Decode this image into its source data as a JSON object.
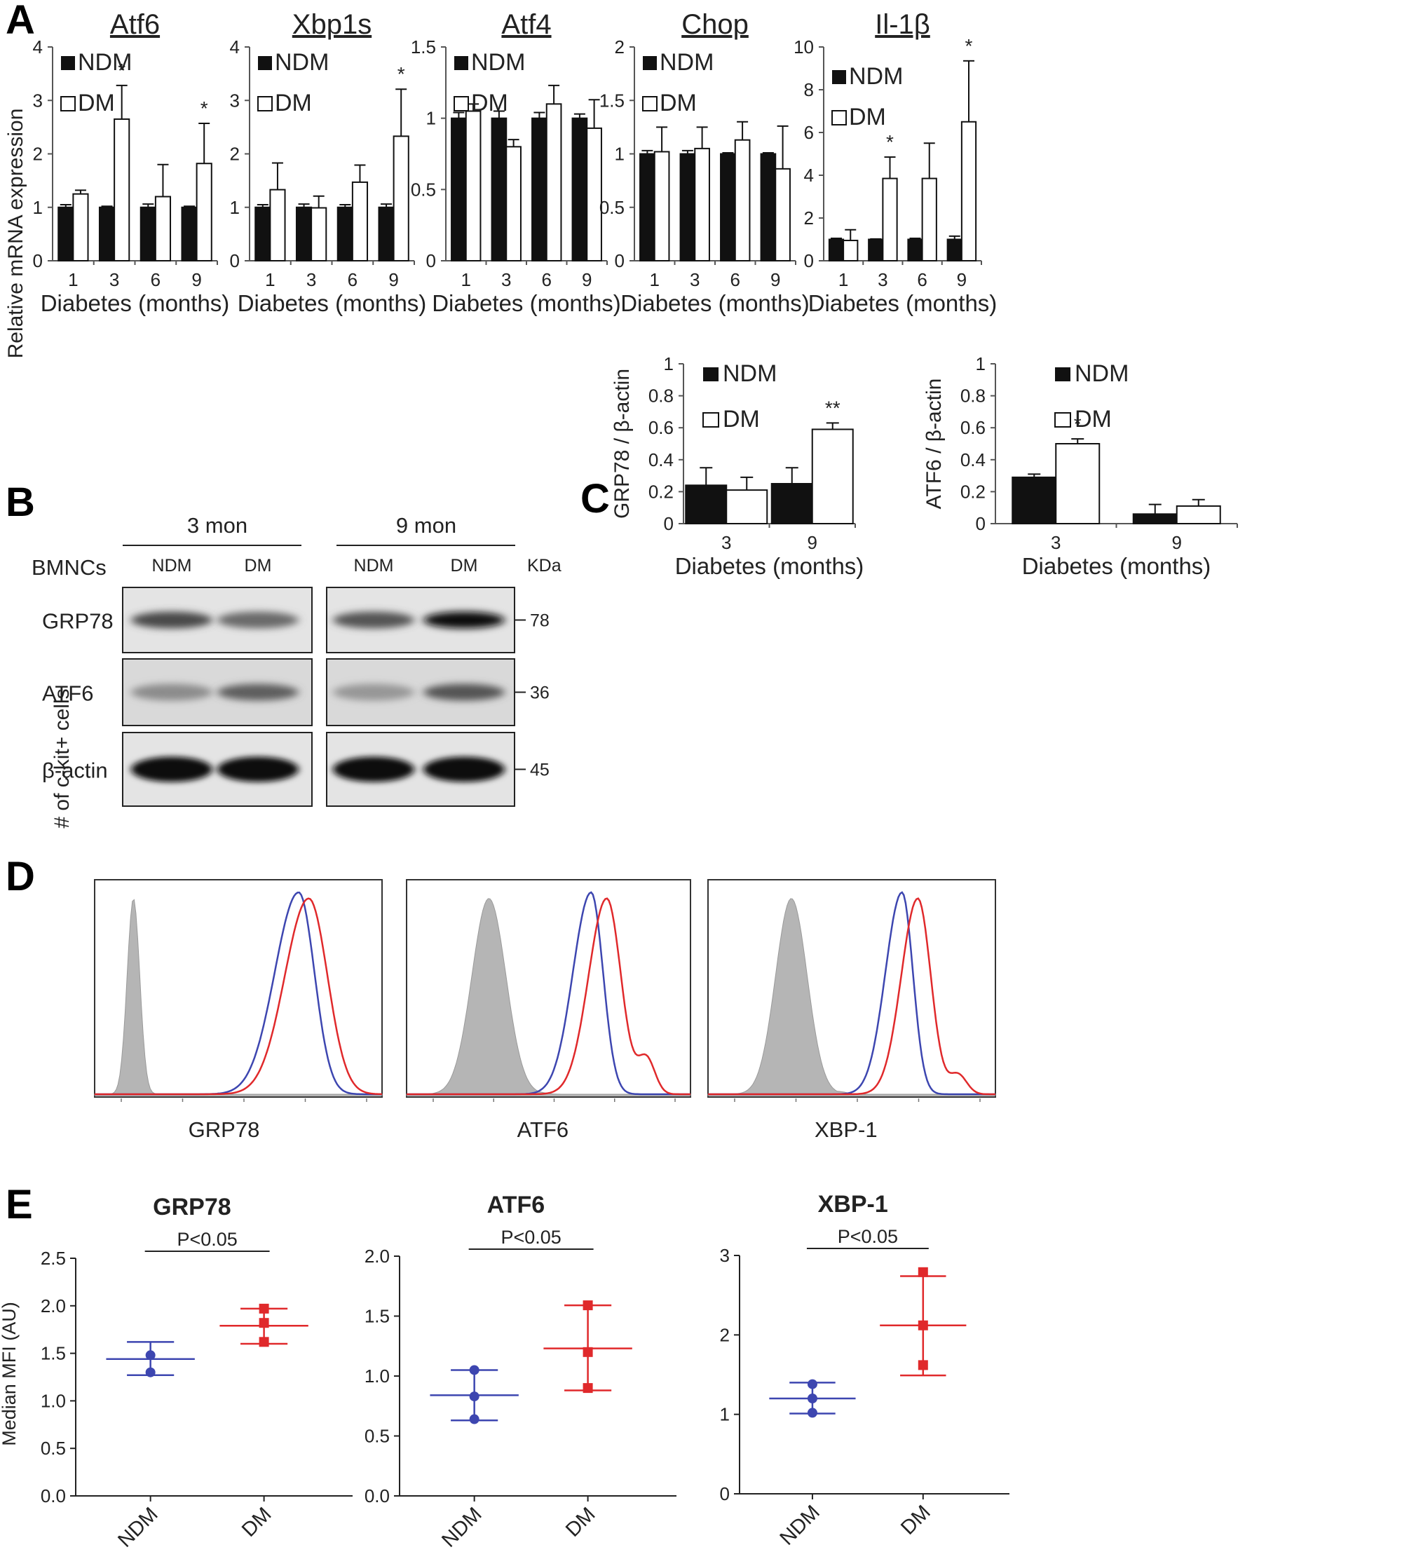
{
  "colors": {
    "ndm_bar": "#111111",
    "dm_bar": "#ffffff",
    "ndm_flow": "#3d46b0",
    "dm_flow": "#e0292b",
    "isotype_fill": "#b5b5b5"
  },
  "panel_labels": {
    "a": "A",
    "b": "B",
    "c": "C",
    "d": "D",
    "e": "E"
  },
  "panel_a": {
    "y_label": "Relative mRNA expression",
    "x_label": "Diabetes  (months)",
    "legend": {
      "ndm": "NDM",
      "dm": "DM"
    },
    "charts": [
      {
        "title": "Atf6",
        "categories": [
          "1",
          "3",
          "6",
          "9"
        ],
        "ylim": [
          0,
          4
        ],
        "yticks": [
          "0",
          "1",
          "2",
          "3",
          "4"
        ],
        "series": [
          {
            "name": "NDM",
            "values": [
              1.0,
              1.0,
              1.0,
              1.0
            ],
            "err": [
              0.05,
              0.02,
              0.06,
              0.02
            ]
          },
          {
            "name": "DM",
            "values": [
              1.25,
              2.65,
              1.2,
              1.82
            ],
            "err": [
              0.07,
              0.63,
              0.6,
              0.75
            ]
          }
        ],
        "stars": [
          "",
          "*",
          "",
          "*"
        ]
      },
      {
        "title": "Xbp1s",
        "categories": [
          "1",
          "3",
          "6",
          "9"
        ],
        "ylim": [
          0,
          4
        ],
        "yticks": [
          "0",
          "1",
          "2",
          "3",
          "4"
        ],
        "series": [
          {
            "name": "NDM",
            "values": [
              1.0,
              1.0,
              1.0,
              1.0
            ],
            "err": [
              0.05,
              0.06,
              0.05,
              0.06
            ]
          },
          {
            "name": "DM",
            "values": [
              1.33,
              0.99,
              1.47,
              2.33
            ],
            "err": [
              0.5,
              0.22,
              0.32,
              0.88
            ]
          }
        ],
        "stars": [
          "",
          "",
          "",
          "*"
        ]
      },
      {
        "title": "Atf4",
        "categories": [
          "1",
          "3",
          "6",
          "9"
        ],
        "ylim": [
          0,
          1.5
        ],
        "yticks": [
          "0",
          "0.5",
          "1",
          "1.5"
        ],
        "series": [
          {
            "name": "NDM",
            "values": [
              1.0,
              1.0,
              1.0,
              1.0
            ],
            "err": [
              0.04,
              0.05,
              0.04,
              0.03
            ]
          },
          {
            "name": "DM",
            "values": [
              1.05,
              0.8,
              1.1,
              0.93
            ],
            "err": [
              0.05,
              0.05,
              0.13,
              0.2
            ]
          }
        ],
        "stars": [
          "",
          "",
          "",
          ""
        ]
      },
      {
        "title": "Chop",
        "categories": [
          "1",
          "3",
          "6",
          "9"
        ],
        "ylim": [
          0,
          2
        ],
        "yticks": [
          "0",
          "0.5",
          "1",
          "1.5",
          "2"
        ],
        "series": [
          {
            "name": "NDM",
            "values": [
              1.0,
              1.0,
              1.0,
              1.0
            ],
            "err": [
              0.03,
              0.03,
              0.01,
              0.01
            ]
          },
          {
            "name": "DM",
            "values": [
              1.02,
              1.05,
              1.13,
              0.86
            ],
            "err": [
              0.23,
              0.2,
              0.17,
              0.4
            ]
          }
        ],
        "stars": [
          "",
          "",
          "",
          ""
        ]
      },
      {
        "title": "Il-1β",
        "categories": [
          "1",
          "3",
          "6",
          "9"
        ],
        "ylim": [
          0,
          10
        ],
        "yticks": [
          "0",
          "2",
          "4",
          "6",
          "8",
          "10"
        ],
        "series": [
          {
            "name": "NDM",
            "values": [
              1.0,
              1.0,
              1.0,
              1.0
            ],
            "err": [
              0.05,
              0.02,
              0.05,
              0.15
            ]
          },
          {
            "name": "DM",
            "values": [
              0.95,
              3.85,
              3.85,
              6.5
            ],
            "err": [
              0.5,
              1.0,
              1.65,
              2.85
            ]
          }
        ],
        "stars": [
          "",
          "*",
          "",
          "*"
        ]
      }
    ]
  },
  "panel_b": {
    "groups": [
      "3 mon",
      "9 mon"
    ],
    "row_header": "BMNCs",
    "lanes": [
      "NDM",
      "DM",
      "NDM",
      "DM"
    ],
    "kda_label": "KDa",
    "bands": [
      {
        "name": "GRP78",
        "kda": "78",
        "intensity": [
          0.7,
          0.55,
          0.65,
          0.95
        ]
      },
      {
        "name": "ATF6",
        "kda": "36",
        "intensity": [
          0.4,
          0.6,
          0.35,
          0.65
        ]
      },
      {
        "name": "β-actin",
        "kda": "45",
        "intensity": [
          0.95,
          0.95,
          0.95,
          0.95
        ]
      }
    ]
  },
  "panel_c": {
    "x_label": "Diabetes  (months)",
    "legend": {
      "ndm": "NDM",
      "dm": "DM"
    },
    "charts": [
      {
        "ylabel": "GRP78 / β-actin",
        "categories": [
          "3",
          "9"
        ],
        "ylim": [
          0,
          1
        ],
        "yticks": [
          "0",
          "0.2",
          "0.4",
          "0.6",
          "0.8",
          "1"
        ],
        "series": [
          {
            "name": "NDM",
            "values": [
              0.24,
              0.25
            ],
            "err": [
              0.11,
              0.1
            ]
          },
          {
            "name": "DM",
            "values": [
              0.21,
              0.59
            ],
            "err": [
              0.08,
              0.04
            ]
          }
        ],
        "stars": [
          "",
          "**"
        ]
      },
      {
        "ylabel": "ATF6 / β-actin",
        "categories": [
          "3",
          "9"
        ],
        "ylim": [
          0,
          1
        ],
        "yticks": [
          "0",
          "0.2",
          "0.4",
          "0.6",
          "0.8",
          "1"
        ],
        "series": [
          {
            "name": "NDM",
            "values": [
              0.29,
              0.06
            ],
            "err": [
              0.02,
              0.06
            ]
          },
          {
            "name": "DM",
            "values": [
              0.5,
              0.11
            ],
            "err": [
              0.03,
              0.04
            ]
          }
        ],
        "stars": [
          "*",
          ""
        ]
      }
    ]
  },
  "panel_d": {
    "y_label": "# of c-kit+ cells",
    "charts": [
      {
        "marker": "GRP78",
        "isotype_center": 0.135,
        "isotype_width": 0.022,
        "ndm_center": 0.71,
        "dm_center": 0.745,
        "width": 0.052,
        "tail": 0.0
      },
      {
        "marker": "ATF6",
        "isotype_center": 0.29,
        "isotype_width": 0.06,
        "ndm_center": 0.65,
        "dm_center": 0.705,
        "width": 0.04,
        "tail": 0.18
      },
      {
        "marker": "XBP-1",
        "isotype_center": 0.29,
        "isotype_width": 0.055,
        "ndm_center": 0.675,
        "dm_center": 0.73,
        "width": 0.036,
        "tail": 0.1
      }
    ]
  },
  "panel_e": {
    "y_label": "Median MFI (AU)",
    "charts": [
      {
        "title": "GRP78",
        "categories": [
          "NDM",
          "DM"
        ],
        "ylim": [
          0,
          2.5
        ],
        "yticks": [
          "0.0",
          "0.5",
          "1.0",
          "1.5",
          "2.0",
          "2.5"
        ],
        "pvalue": "P<0.05",
        "ndm": {
          "points": [
            1.48,
            1.3
          ],
          "mean": 1.44,
          "upper": 1.62,
          "lower": 1.27
        },
        "dm": {
          "points": [
            1.97,
            1.82,
            1.62
          ],
          "mean": 1.79,
          "upper": 1.97,
          "lower": 1.6
        }
      },
      {
        "title": "ATF6",
        "categories": [
          "NDM",
          "DM"
        ],
        "ylim": [
          0,
          2.0
        ],
        "yticks": [
          "0.0",
          "0.5",
          "1.0",
          "1.5",
          "2.0"
        ],
        "pvalue": "P<0.05",
        "ndm": {
          "points": [
            1.05,
            0.83,
            0.64
          ],
          "mean": 0.84,
          "upper": 1.05,
          "lower": 0.63
        },
        "dm": {
          "points": [
            1.59,
            1.2,
            0.9
          ],
          "mean": 1.23,
          "upper": 1.59,
          "lower": 0.88
        }
      },
      {
        "title": "XBP-1",
        "categories": [
          "NDM",
          "DM"
        ],
        "ylim": [
          0,
          3
        ],
        "yticks": [
          "0",
          "1",
          "2",
          "3"
        ],
        "pvalue": "P<0.05",
        "ndm": {
          "points": [
            1.38,
            1.2,
            1.02
          ],
          "mean": 1.2,
          "upper": 1.4,
          "lower": 1.01
        },
        "dm": {
          "points": [
            2.79,
            2.12,
            1.62
          ],
          "mean": 2.12,
          "upper": 2.74,
          "lower": 1.49
        }
      }
    ]
  }
}
